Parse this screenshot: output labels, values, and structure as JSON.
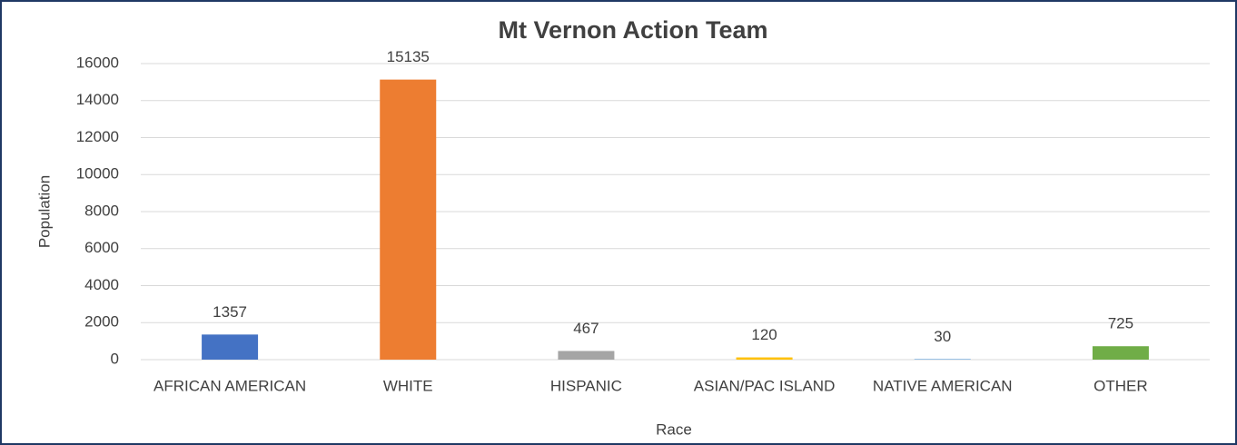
{
  "chart_data": {
    "type": "bar",
    "title": "Mt Vernon Action Team",
    "categories": [
      "AFRICAN AMERICAN",
      "WHITE",
      "HISPANIC",
      "ASIAN/PAC ISLAND",
      "NATIVE AMERICAN",
      "OTHER"
    ],
    "values": [
      1357,
      15135,
      467,
      120,
      30,
      725
    ],
    "colors": [
      "#4472c4",
      "#ed7d31",
      "#a5a5a5",
      "#ffc000",
      "#5b9bd5",
      "#70ad47"
    ],
    "x_label": "Race",
    "y_label": "Population",
    "ylim": [
      0,
      16000
    ],
    "yticks": [
      0,
      2000,
      4000,
      6000,
      8000,
      10000,
      12000,
      14000,
      16000
    ],
    "grid": true
  }
}
